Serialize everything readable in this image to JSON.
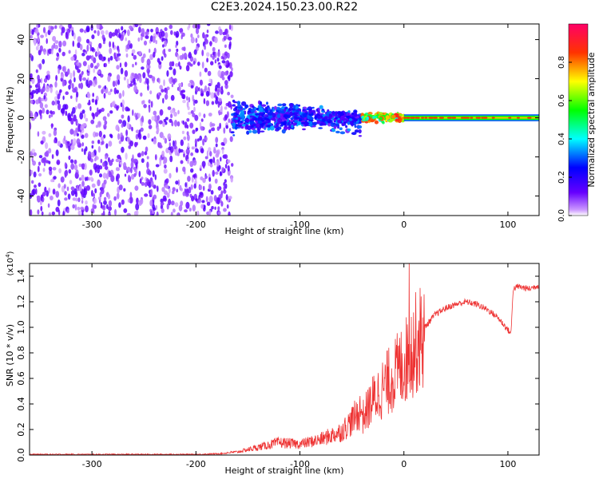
{
  "title": "C2E3.2024.150.23.00.R22",
  "chart_data": [
    {
      "type": "heatmap",
      "xlabel": "Height of straight line (km)",
      "ylabel": "Frequency (Hz)",
      "xlim": [
        -360,
        130
      ],
      "ylim": [
        -50,
        48
      ],
      "x_ticks": [
        -300,
        -200,
        -100,
        0,
        100
      ],
      "y_ticks": [
        -40,
        -20,
        0,
        20,
        40
      ],
      "grid": false,
      "colorbar": {
        "label": "Normalized spectral amplitude",
        "range": [
          0.0,
          1.0
        ],
        "ticks": [
          0.0,
          0.2,
          0.4,
          0.6,
          0.8
        ],
        "colormap": [
          "#ffffff",
          "#6600ff",
          "#0000ff",
          "#00ffff",
          "#00ff00",
          "#ffff00",
          "#ff0000",
          "#ff0066"
        ]
      },
      "regions": [
        {
          "x": [
            -360,
            -165
          ],
          "freq_spread": [
            -50,
            48
          ],
          "amplitude": [
            0.02,
            0.15
          ]
        },
        {
          "x": [
            -165,
            -40
          ],
          "freq_center": 0,
          "freq_spread": [
            -20,
            15
          ],
          "amplitude": [
            0.1,
            0.35
          ]
        },
        {
          "x": [
            -40,
            0
          ],
          "freq_center": 0,
          "freq_spread": [
            -4,
            4
          ],
          "amplitude": [
            0.4,
            0.9
          ]
        },
        {
          "x": [
            0,
            130
          ],
          "freq_center": 0,
          "freq_spread": [
            -2,
            2
          ],
          "amplitude": [
            0.6,
            0.9
          ]
        }
      ]
    },
    {
      "type": "line",
      "xlabel": "Height of straight line (km)",
      "ylabel": "SNR (10 * v/v)",
      "y_multiplier": "(x10^4)",
      "xlim": [
        -360,
        130
      ],
      "ylim": [
        0,
        1.5
      ],
      "x_ticks": [
        -300,
        -200,
        -100,
        0,
        100
      ],
      "y_ticks": [
        0.0,
        0.2,
        0.4,
        0.6,
        0.8,
        1.0,
        1.2,
        1.4
      ],
      "line_color": "#ee3333",
      "grid": false,
      "series": [
        {
          "x": [
            -360,
            -300,
            -250,
            -200,
            -180,
            -160,
            -140,
            -120,
            -100,
            -80,
            -60,
            -50,
            -40,
            -30,
            -20,
            -10,
            0,
            10,
            20,
            30,
            40,
            50,
            60,
            70,
            80,
            90,
            100,
            103,
            105,
            110,
            120,
            130
          ],
          "y": [
            0.005,
            0.005,
            0.005,
            0.005,
            0.01,
            0.02,
            0.05,
            0.08,
            0.07,
            0.1,
            0.15,
            0.22,
            0.3,
            0.45,
            0.55,
            0.65,
            0.75,
            0.9,
            1.0,
            1.1,
            1.15,
            1.18,
            1.2,
            1.18,
            1.14,
            1.08,
            0.98,
            0.95,
            1.3,
            1.32,
            1.3,
            1.33
          ]
        }
      ],
      "spikes": [
        {
          "x": 5,
          "y": 1.5
        }
      ]
    }
  ]
}
